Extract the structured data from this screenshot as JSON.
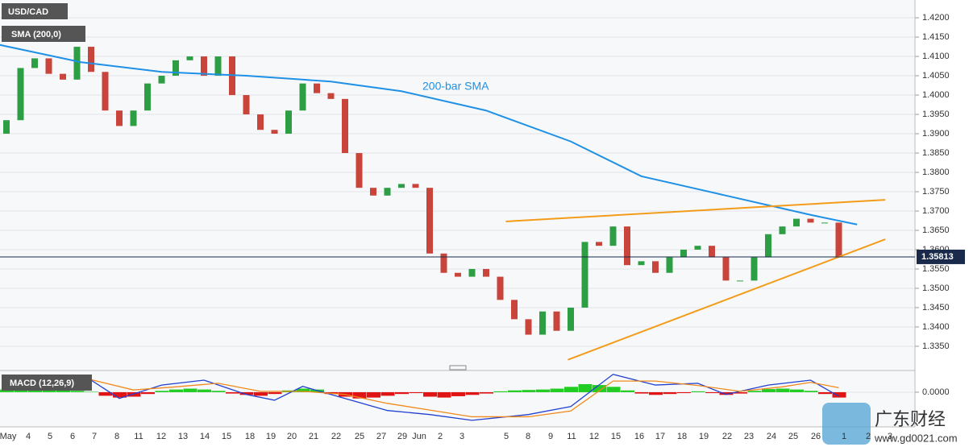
{
  "chart_data": [
    {
      "type": "candlestick",
      "symbol": "USD/CAD",
      "indicator_label": "SMA (200,0)",
      "annotation": "200-bar SMA",
      "ylim": [
        1.3304,
        1.4246
      ],
      "yticks": [
        {
          "value": 1.42,
          "label": "1.4200"
        },
        {
          "value": 1.415,
          "label": "1.4150"
        },
        {
          "value": 1.41,
          "label": "1.4100"
        },
        {
          "value": 1.405,
          "label": "1.4050"
        },
        {
          "value": 1.4,
          "label": "1.4000"
        },
        {
          "value": 1.395,
          "label": "1.3950"
        },
        {
          "value": 1.39,
          "label": "1.3900"
        },
        {
          "value": 1.385,
          "label": "1.3850"
        },
        {
          "value": 1.38,
          "label": "1.3800"
        },
        {
          "value": 1.375,
          "label": "1.3750"
        },
        {
          "value": 1.37,
          "label": "1.3700"
        },
        {
          "value": 1.365,
          "label": "1.3650"
        },
        {
          "value": 1.36,
          "label": "1.3600"
        },
        {
          "value": 1.355,
          "label": "1.3550"
        },
        {
          "value": 1.35,
          "label": "1.3500"
        },
        {
          "value": 1.345,
          "label": "1.3450"
        },
        {
          "value": 1.34,
          "label": "1.3400"
        },
        {
          "value": 1.335,
          "label": "1.3350"
        }
      ],
      "x_labels": [
        "May",
        "4",
        "5",
        "6",
        "7",
        "8",
        "11",
        "12",
        "13",
        "14",
        "15",
        "18",
        "19",
        "20",
        "21",
        "22",
        "25",
        "27",
        "29",
        "Jun",
        "2",
        "3",
        "5",
        "8",
        "9",
        "11",
        "12",
        "15",
        "16",
        "17",
        "18",
        "19",
        "22",
        "23",
        "24",
        "25",
        "26",
        "1",
        "2",
        "3"
      ],
      "open": [
        1.39,
        1.3935,
        1.407,
        1.4095,
        1.4055,
        1.404,
        1.4125,
        1.406,
        1.396,
        1.392,
        1.396,
        1.403,
        1.405,
        1.409,
        1.41,
        1.405,
        1.41,
        1.4,
        1.395,
        1.391,
        1.39,
        1.396,
        1.403,
        1.4005,
        1.399,
        1.385,
        1.376,
        1.374,
        1.376,
        1.377,
        1.376,
        1.359,
        1.354,
        1.353,
        1.355,
        1.353,
        1.347,
        1.342,
        1.338,
        1.344,
        1.339,
        1.345,
        1.362,
        1.361,
        1.366,
        1.356,
        1.357,
        1.354,
        1.358,
        1.36,
        1.361,
        1.358,
        1.352,
        1.352,
        1.358,
        1.364,
        1.366,
        1.368,
        1.367,
        1.367
      ],
      "close": [
        1.3935,
        1.407,
        1.4095,
        1.4055,
        1.404,
        1.4125,
        1.406,
        1.396,
        1.392,
        1.396,
        1.403,
        1.405,
        1.409,
        1.41,
        1.405,
        1.41,
        1.4,
        1.395,
        1.391,
        1.39,
        1.396,
        1.403,
        1.4005,
        1.399,
        1.385,
        1.376,
        1.374,
        1.376,
        1.377,
        1.376,
        1.359,
        1.354,
        1.353,
        1.355,
        1.353,
        1.347,
        1.342,
        1.338,
        1.344,
        1.339,
        1.345,
        1.362,
        1.361,
        1.366,
        1.356,
        1.357,
        1.354,
        1.358,
        1.36,
        1.361,
        1.358,
        1.352,
        1.352,
        1.358,
        1.364,
        1.366,
        1.368,
        1.367,
        1.367,
        1.3581
      ],
      "up_color": "#2e9e44",
      "down_color": "#c9453b",
      "sma": {
        "color": "#1e90e6",
        "x": [
          -0.5,
          5.3,
          11,
          17,
          23,
          28,
          34,
          40,
          45,
          51,
          57,
          60.3
        ],
        "values": [
          1.413,
          1.4085,
          1.406,
          1.405,
          1.4035,
          1.401,
          1.396,
          1.388,
          1.379,
          1.374,
          1.369,
          1.3665
        ]
      },
      "trendlines": [
        {
          "color": "#f39c1a",
          "x": [
            35.4,
            62.3
          ],
          "values": [
            1.3673,
            1.3729
          ]
        },
        {
          "color": "#f39c1a",
          "x": [
            39.8,
            62.3
          ],
          "values": [
            1.3315,
            1.3627
          ]
        }
      ],
      "last_price": 1.35813
    },
    {
      "type": "macd",
      "label": "MACD (12,26,9)",
      "ylim": [
        -0.0074,
        0.0045
      ],
      "yticks": [
        {
          "value": 0,
          "label": "0.0000"
        }
      ],
      "macd": {
        "color": "#2040d0",
        "x": [
          0,
          3,
          6,
          8,
          11,
          14,
          17,
          19,
          21,
          24,
          27,
          30,
          33,
          37,
          40,
          43,
          46,
          49,
          51,
          54,
          57,
          59
        ],
        "values": [
          0.0013,
          0.0031,
          0.0027,
          -0.0014,
          0.0016,
          0.0027,
          -0.0005,
          -0.0018,
          0.0013,
          -0.0014,
          -0.0041,
          -0.005,
          -0.0063,
          -0.005,
          -0.0032,
          0.004,
          0.0016,
          0.002,
          -0.0005,
          0.0016,
          0.0027,
          -0.0009
        ]
      },
      "signal": {
        "color": "#f08a1c",
        "x": [
          0,
          3,
          6,
          9,
          12,
          15,
          18,
          21,
          24,
          27,
          30,
          33,
          37,
          40,
          43,
          46,
          49,
          52,
          55,
          57,
          59
        ],
        "values": [
          0.0005,
          0.0022,
          0.0028,
          0.0005,
          0.0012,
          0.002,
          0.0002,
          0.0002,
          -0.0005,
          -0.0025,
          -0.004,
          -0.0055,
          -0.0055,
          -0.0042,
          0.0025,
          0.0025,
          0.0015,
          0.0002,
          0.0012,
          0.0022,
          0.001
        ]
      },
      "histogram": [
        0.0006,
        0.0008,
        0.0009,
        0.0008,
        0.0005,
        0.0003,
        0.0001,
        -0.0008,
        -0.0012,
        -0.001,
        -0.0004,
        0.0003,
        0.0006,
        0.0008,
        0.0006,
        0.0003,
        -0.0003,
        -0.0006,
        -0.0008,
        -0.0004,
        0.0004,
        0.0008,
        0.0006,
        -0.0004,
        -0.001,
        -0.0014,
        -0.0012,
        -0.0008,
        -0.0004,
        -0.0002,
        -0.001,
        -0.0012,
        -0.0009,
        -0.0006,
        -0.0003,
        0.0002,
        0.0004,
        0.0005,
        0.0006,
        0.0008,
        0.0012,
        0.0018,
        0.0016,
        0.0012,
        0.0004,
        -0.0003,
        -0.0006,
        -0.0004,
        -0.0002,
        0.0002,
        -0.0002,
        -0.0006,
        -0.0003,
        0.0003,
        0.0007,
        0.0008,
        0.0006,
        0.0003,
        -0.0004,
        -0.0012
      ],
      "pos_color": "#22cc22",
      "neg_color": "#e01414"
    }
  ],
  "watermark": {
    "brand": "广东财经",
    "site": "www.gd0021.com"
  }
}
